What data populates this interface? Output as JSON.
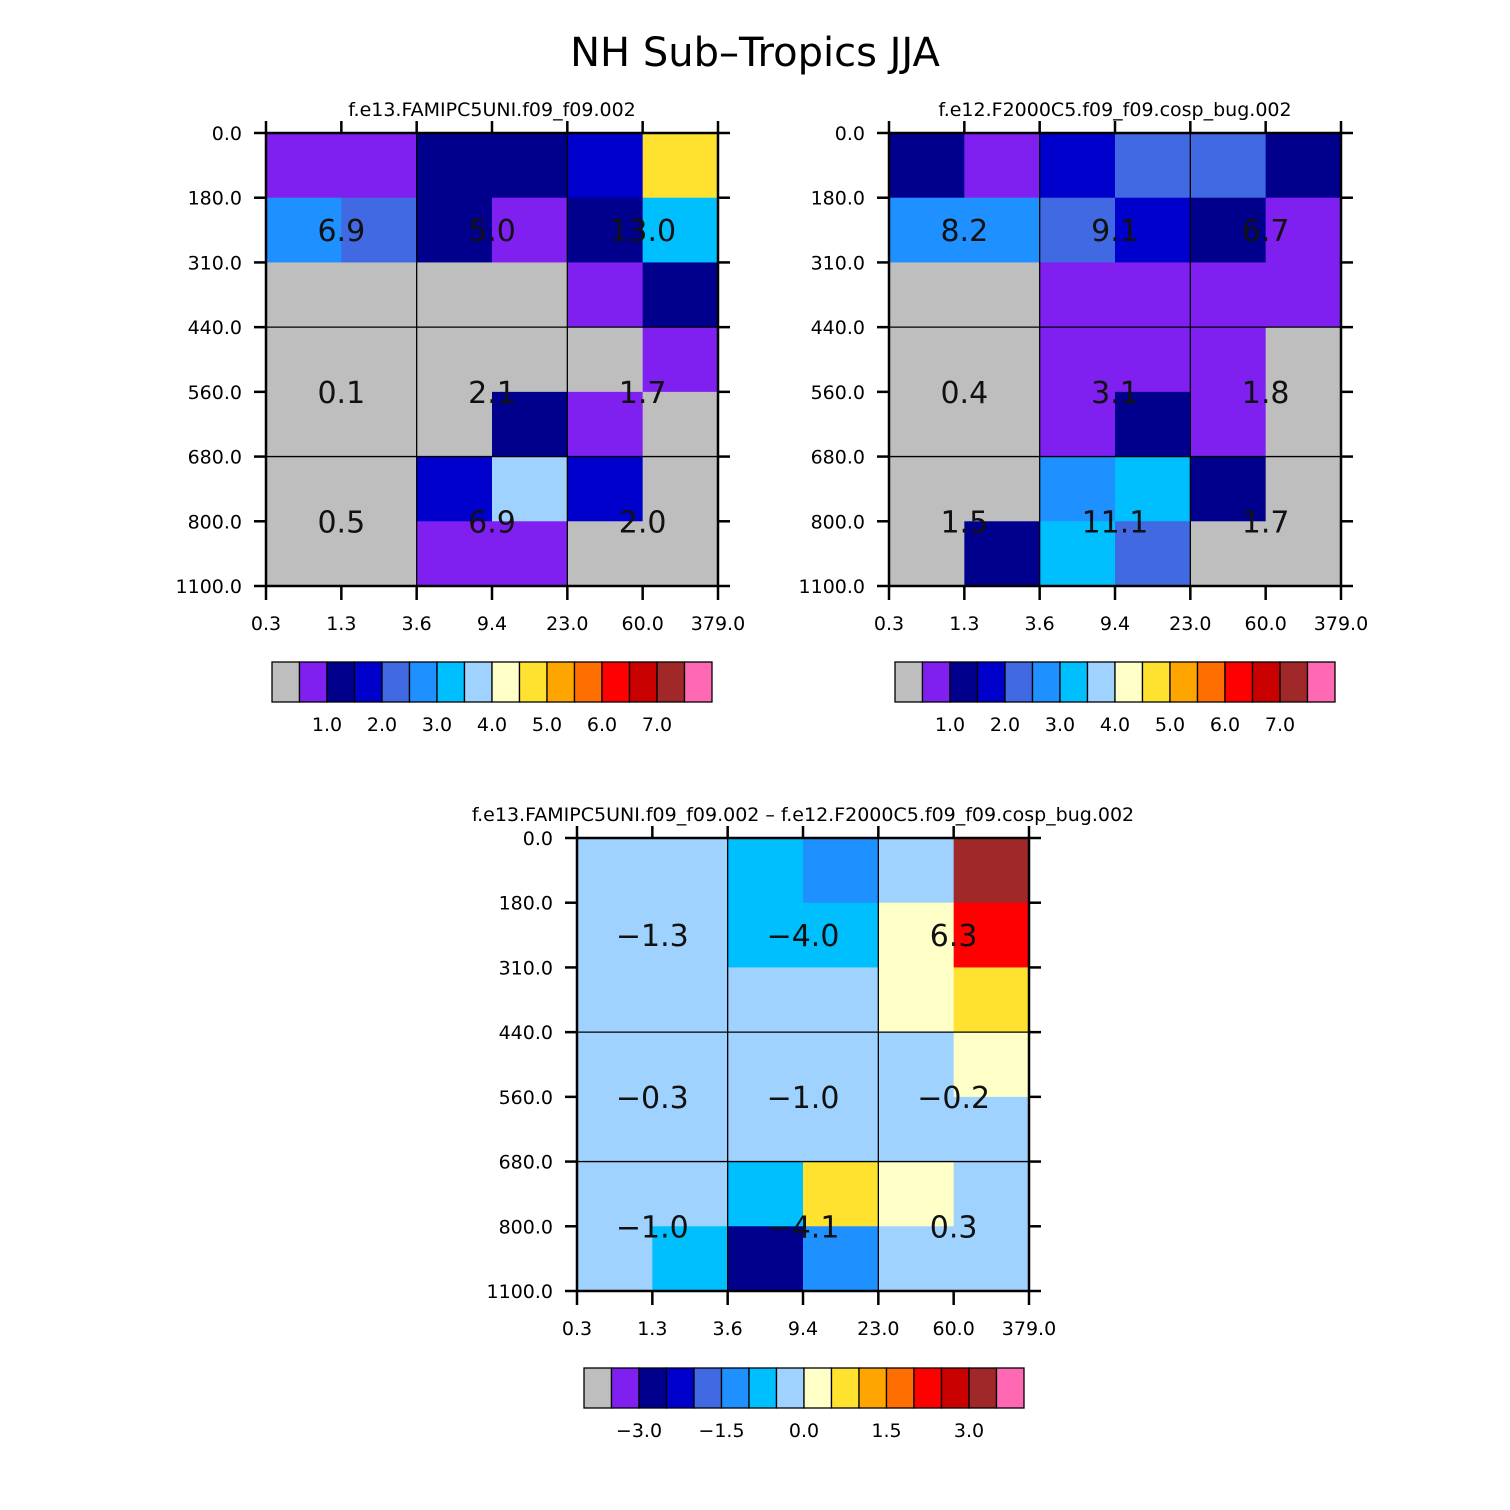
{
  "figure": {
    "title": "NH Sub–Tropics JJA"
  },
  "palette": {
    "colors": [
      "#bebebe",
      "#8020f0",
      "#00008c",
      "#0000cd",
      "#4169e1",
      "#1e90ff",
      "#00bfff",
      "#a0d2ff",
      "#ffffc8",
      "#ffe130",
      "#ffa500",
      "#ff6e00",
      "#ff0000",
      "#c80000",
      "#a02828",
      "#ff69b4"
    ]
  },
  "chart_data": [
    {
      "type": "heatmap",
      "title": "f.e13.FAMIPC5UNI.f09_f09.002",
      "x_ticks": [
        "0.3",
        "1.3",
        "3.6",
        "9.4",
        "23.0",
        "60.0",
        "379.0"
      ],
      "y_ticks": [
        "0.0",
        "180.0",
        "310.0",
        "440.0",
        "560.0",
        "680.0",
        "800.0",
        "1100.0"
      ],
      "cells": [
        [
          1,
          1,
          2,
          2,
          3,
          9
        ],
        [
          5,
          4,
          2,
          1,
          2,
          6
        ],
        [
          0,
          0,
          0,
          0,
          1,
          2
        ],
        [
          0,
          0,
          0,
          0,
          0,
          1
        ],
        [
          0,
          0,
          0,
          2,
          1,
          0
        ],
        [
          0,
          0,
          3,
          7,
          3,
          0
        ],
        [
          0,
          0,
          1,
          1,
          0,
          0
        ]
      ],
      "box_values": [
        [
          "6.9",
          "5.0",
          "13.0"
        ],
        [
          "0.1",
          "2.1",
          "1.7"
        ],
        [
          "0.5",
          "6.9",
          "2.0"
        ]
      ],
      "colorbar_labels": [
        "1.0",
        "2.0",
        "3.0",
        "4.0",
        "5.0",
        "6.0",
        "7.0"
      ]
    },
    {
      "type": "heatmap",
      "title": "f.e12.F2000C5.f09_f09.cosp_bug.002",
      "x_ticks": [
        "0.3",
        "1.3",
        "3.6",
        "9.4",
        "23.0",
        "60.0",
        "379.0"
      ],
      "y_ticks": [
        "0.0",
        "180.0",
        "310.0",
        "440.0",
        "560.0",
        "680.0",
        "800.0",
        "1100.0"
      ],
      "cells": [
        [
          2,
          1,
          3,
          4,
          4,
          2
        ],
        [
          5,
          5,
          4,
          3,
          2,
          1
        ],
        [
          0,
          0,
          1,
          1,
          1,
          1
        ],
        [
          0,
          0,
          1,
          1,
          1,
          0
        ],
        [
          0,
          0,
          1,
          2,
          1,
          0
        ],
        [
          0,
          0,
          5,
          6,
          2,
          0
        ],
        [
          0,
          2,
          6,
          4,
          0,
          0
        ]
      ],
      "box_values": [
        [
          "8.2",
          "9.1",
          "6.7"
        ],
        [
          "0.4",
          "3.1",
          "1.8"
        ],
        [
          "1.5",
          "11.1",
          "1.7"
        ]
      ],
      "colorbar_labels": [
        "1.0",
        "2.0",
        "3.0",
        "4.0",
        "5.0",
        "6.0",
        "7.0"
      ]
    },
    {
      "type": "heatmap",
      "title": "f.e13.FAMIPC5UNI.f09_f09.002 – f.e12.F2000C5.f09_f09.cosp_bug.002",
      "x_ticks": [
        "0.3",
        "1.3",
        "3.6",
        "9.4",
        "23.0",
        "60.0",
        "379.0"
      ],
      "y_ticks": [
        "0.0",
        "180.0",
        "310.0",
        "440.0",
        "560.0",
        "680.0",
        "800.0",
        "1100.0"
      ],
      "cells": [
        [
          7,
          7,
          6,
          5,
          7,
          14
        ],
        [
          7,
          7,
          6,
          6,
          8,
          12
        ],
        [
          7,
          7,
          7,
          7,
          8,
          9
        ],
        [
          7,
          7,
          7,
          7,
          7,
          8
        ],
        [
          7,
          7,
          7,
          7,
          7,
          7
        ],
        [
          7,
          7,
          6,
          9,
          8,
          7
        ],
        [
          7,
          6,
          2,
          5,
          7,
          7
        ]
      ],
      "box_values": [
        [
          "−1.3",
          "−4.0",
          "6.3"
        ],
        [
          "−0.3",
          "−1.0",
          "−0.2"
        ],
        [
          "−1.0",
          "−4.1",
          "0.3"
        ]
      ],
      "colorbar_labels": [
        "−3.0",
        "−1.5",
        "0.0",
        "1.5",
        "3.0"
      ]
    }
  ]
}
